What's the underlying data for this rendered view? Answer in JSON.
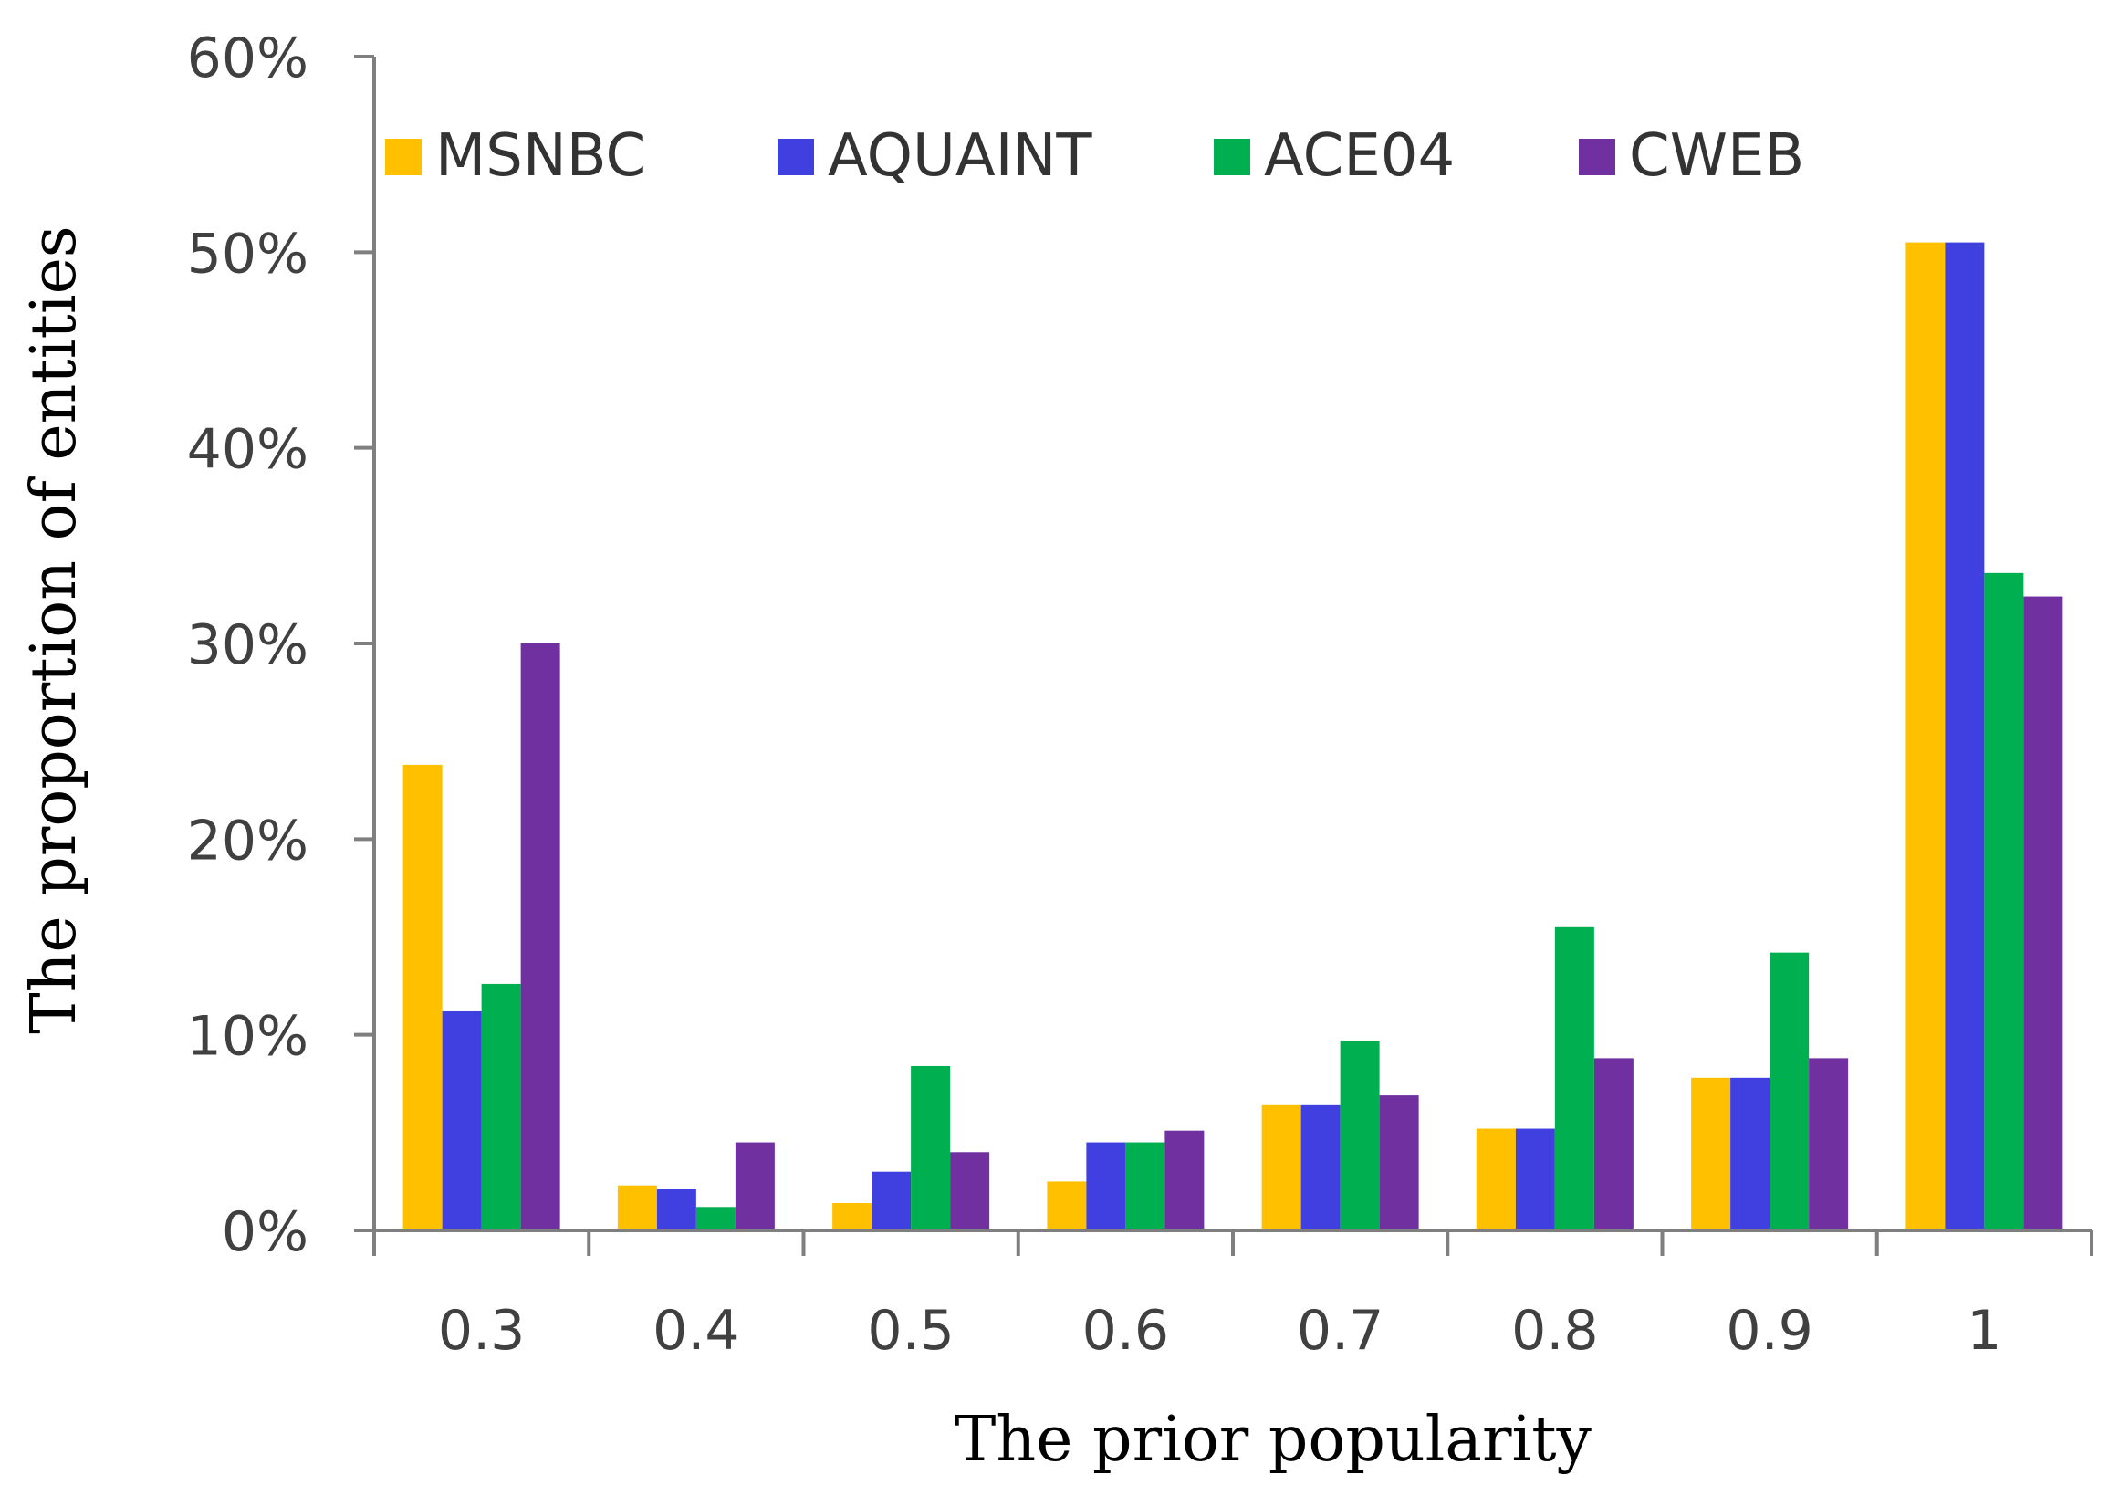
{
  "chart_data": {
    "type": "bar",
    "title": "",
    "xlabel": "The prior popularity",
    "ylabel": "The proportion of entities",
    "categories": [
      "0.3",
      "0.4",
      "0.5",
      "0.6",
      "0.7",
      "0.8",
      "0.9",
      "1"
    ],
    "ylim": [
      0,
      60
    ],
    "yticks": [
      0,
      10,
      20,
      30,
      40,
      50,
      60
    ],
    "ytick_labels": [
      "0%",
      "10%",
      "20%",
      "30%",
      "40%",
      "50%",
      "60%"
    ],
    "grid": false,
    "legend_position": "top",
    "series": [
      {
        "name": "MSNBC",
        "color": "#FFC000",
        "values": [
          23.8,
          2.3,
          1.4,
          2.5,
          6.4,
          5.2,
          7.8,
          50.5
        ]
      },
      {
        "name": "AQUAINT",
        "color": "#4040E0",
        "values": [
          11.2,
          2.1,
          3.0,
          4.5,
          6.4,
          5.2,
          7.8,
          50.5
        ]
      },
      {
        "name": "ACE04",
        "color": "#00B050",
        "values": [
          12.6,
          1.2,
          8.4,
          4.5,
          9.7,
          15.5,
          14.2,
          33.6
        ]
      },
      {
        "name": "CWEB",
        "color": "#7030A0",
        "values": [
          30.0,
          4.5,
          4.0,
          5.1,
          6.9,
          8.8,
          8.8,
          32.4
        ]
      }
    ]
  }
}
